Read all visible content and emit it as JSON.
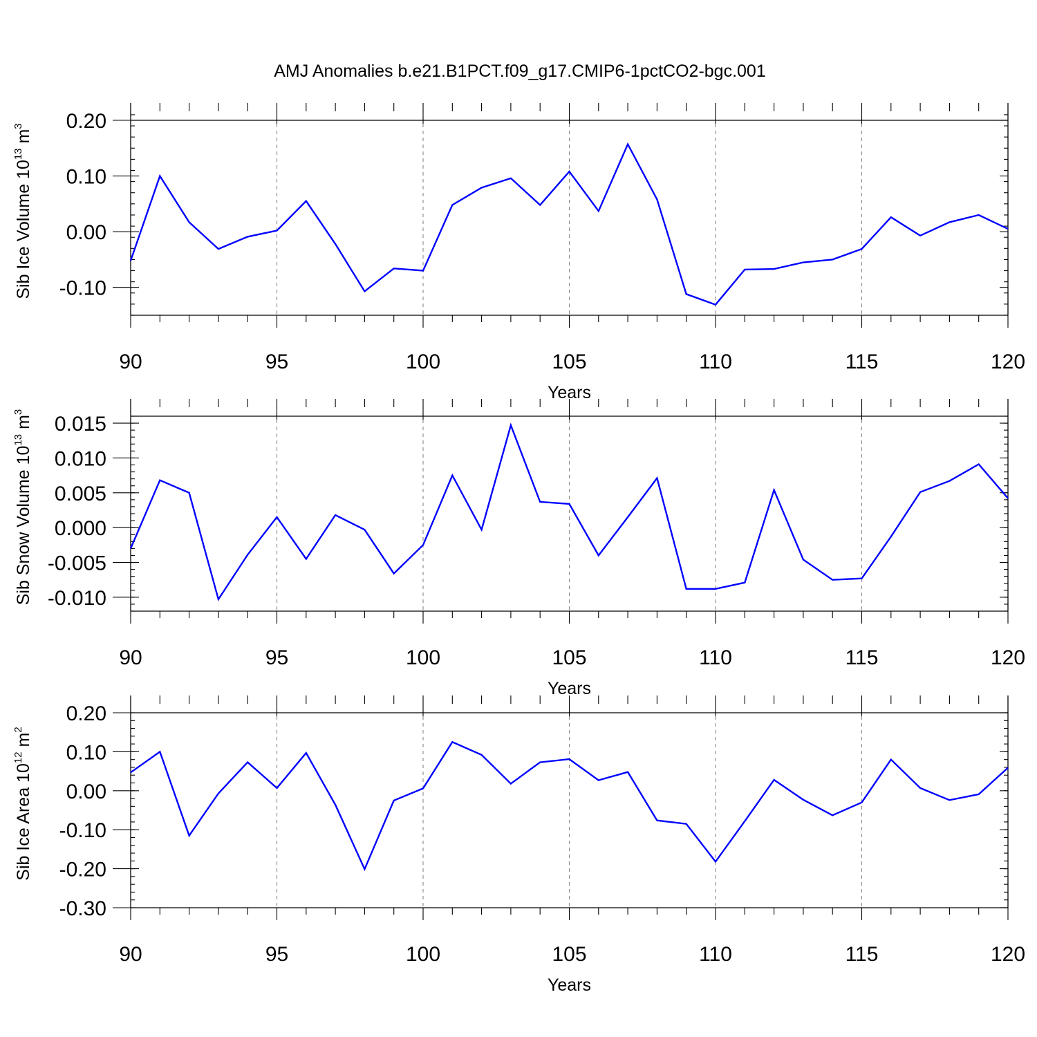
{
  "title": "AMJ Anomalies b.e21.B1PCT.f09_g17.CMIP6-1pctCO2-bgc.001",
  "colors": {
    "line": "#0000ff",
    "grid": "#888888",
    "frame": "#000000"
  },
  "chart_data": [
    {
      "type": "line",
      "xlabel": "Years",
      "ylabel": "Sib Ice Volume 10",
      "ylabel_sup": "13",
      "ylabel_unit": " m",
      "ylabel_unit_sup": "3",
      "xlim": [
        90,
        120
      ],
      "ylim": [
        -0.15,
        0.2
      ],
      "x_ticks": [
        90,
        95,
        100,
        105,
        110,
        115,
        120
      ],
      "y_ticks": [
        -0.1,
        0.0,
        0.1,
        0.2
      ],
      "y_tick_labels": [
        "-0.10",
        "0.00",
        "0.10",
        "0.20"
      ],
      "y_minor_step": 0.02,
      "grid_vertical": [
        95,
        100,
        105,
        110,
        115
      ],
      "series": [
        {
          "x": [
            90,
            91,
            92,
            93,
            94,
            95,
            96,
            97,
            98,
            99,
            100,
            101,
            102,
            103,
            104,
            105,
            106,
            107,
            108,
            109,
            110,
            111,
            112,
            113,
            114,
            115,
            116,
            117,
            118,
            119,
            120
          ],
          "values": [
            -0.052,
            0.1,
            0.017,
            -0.031,
            -0.009,
            0.002,
            0.055,
            -0.022,
            -0.107,
            -0.066,
            -0.07,
            0.048,
            0.079,
            0.096,
            0.048,
            0.108,
            0.037,
            0.157,
            0.058,
            -0.112,
            -0.131,
            -0.068,
            -0.067,
            -0.055,
            -0.05,
            -0.031,
            0.026,
            -0.007,
            0.017,
            0.03,
            0.005
          ]
        }
      ]
    },
    {
      "type": "line",
      "xlabel": "Years",
      "ylabel": "Sib Snow Volume 10",
      "ylabel_sup": "13",
      "ylabel_unit": " m",
      "ylabel_unit_sup": "3",
      "xlim": [
        90,
        120
      ],
      "ylim": [
        -0.012,
        0.016
      ],
      "x_ticks": [
        90,
        95,
        100,
        105,
        110,
        115,
        120
      ],
      "y_ticks": [
        -0.01,
        -0.005,
        0.0,
        0.005,
        0.01,
        0.015
      ],
      "y_tick_labels": [
        "-0.010",
        "-0.005",
        "0.000",
        "0.005",
        "0.010",
        "0.015"
      ],
      "y_minor_step": 0.001,
      "grid_vertical": [
        95,
        100,
        105,
        110,
        115
      ],
      "series": [
        {
          "x": [
            90,
            91,
            92,
            93,
            94,
            95,
            96,
            97,
            98,
            99,
            100,
            101,
            102,
            103,
            104,
            105,
            106,
            107,
            108,
            109,
            110,
            111,
            112,
            113,
            114,
            115,
            116,
            117,
            118,
            119,
            120
          ],
          "values": [
            -0.003,
            0.0068,
            0.005,
            -0.0103,
            -0.0039,
            0.0015,
            -0.0045,
            0.0018,
            -0.0003,
            -0.0066,
            -0.0025,
            0.0075,
            -0.0003,
            0.0147,
            0.0037,
            0.0034,
            -0.004,
            0.0015,
            0.0071,
            -0.0088,
            -0.0088,
            -0.0079,
            0.0054,
            -0.0046,
            -0.0075,
            -0.0073,
            -0.0013,
            0.0051,
            0.0067,
            0.0091,
            0.0042
          ]
        }
      ]
    },
    {
      "type": "line",
      "xlabel": "Years",
      "ylabel": "Sib Ice Area 10",
      "ylabel_sup": "12",
      "ylabel_unit": " m",
      "ylabel_unit_sup": "2",
      "xlim": [
        90,
        120
      ],
      "ylim": [
        -0.3,
        0.2
      ],
      "x_ticks": [
        90,
        95,
        100,
        105,
        110,
        115,
        120
      ],
      "y_ticks": [
        -0.3,
        -0.2,
        -0.1,
        0.0,
        0.1,
        0.2
      ],
      "y_tick_labels": [
        "-0.30",
        "-0.20",
        "-0.10",
        "0.00",
        "0.10",
        "0.20"
      ],
      "y_minor_step": 0.02,
      "grid_vertical": [
        95,
        100,
        105,
        110,
        115
      ],
      "series": [
        {
          "x": [
            90,
            91,
            92,
            93,
            94,
            95,
            96,
            97,
            98,
            99,
            100,
            101,
            102,
            103,
            104,
            105,
            106,
            107,
            108,
            109,
            110,
            111,
            112,
            113,
            114,
            115,
            116,
            117,
            118,
            119,
            120
          ],
          "values": [
            0.047,
            0.1,
            -0.115,
            -0.007,
            0.073,
            0.007,
            0.097,
            -0.036,
            -0.201,
            -0.025,
            0.006,
            0.125,
            0.092,
            0.018,
            0.073,
            0.081,
            0.027,
            0.048,
            -0.076,
            -0.085,
            -0.182,
            -0.078,
            0.028,
            -0.023,
            -0.063,
            -0.03,
            0.08,
            0.007,
            -0.024,
            -0.009,
            0.059
          ]
        }
      ]
    }
  ]
}
